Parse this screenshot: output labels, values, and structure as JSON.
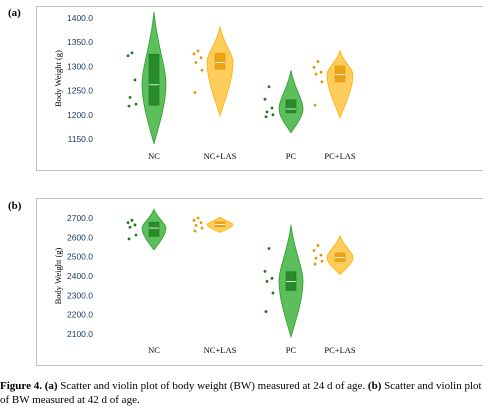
{
  "panels": [
    {
      "label": "(a)",
      "chart_data": {
        "type": "violin",
        "ylabel": "Body Weight (g)",
        "ylim": [
          1150,
          1400
        ],
        "yticks": [
          1150.0,
          1200.0,
          1250.0,
          1300.0,
          1350.0,
          1400.0
        ],
        "tick_labels": [
          "1150.0",
          "1200.0",
          "1250.0",
          "1300.0",
          "1350.0",
          "1400.0"
        ],
        "categories": [
          "NC",
          "NC+LAS",
          "PC",
          "PC+LAS"
        ],
        "colors": [
          "#2ca02c",
          "#ffb000",
          "#2ca02c",
          "#ffb000"
        ],
        "points": [
          [
            1328,
            1322,
            1272,
            1236,
            1222,
            1218
          ],
          [
            1332,
            1326,
            1318,
            1308,
            1292,
            1246
          ],
          [
            1258,
            1232,
            1214,
            1206,
            1200,
            1196
          ],
          [
            1310,
            1298,
            1288,
            1284,
            1268,
            1220
          ]
        ],
        "box": [
          {
            "q1": 1220,
            "median": 1262,
            "q3": 1325
          },
          {
            "q1": 1294,
            "median": 1308,
            "q3": 1327
          },
          {
            "q1": 1204,
            "median": 1212,
            "q3": 1231
          },
          {
            "q1": 1268,
            "median": 1283,
            "q3": 1301
          }
        ],
        "range": [
          [
            1140,
            1413
          ],
          [
            1198,
            1382
          ],
          [
            1163,
            1292
          ],
          [
            1194,
            1332
          ]
        ]
      }
    },
    {
      "label": "(b)",
      "chart_data": {
        "type": "violin",
        "ylabel": "Body Weight (g)",
        "ylim": [
          2100,
          2700
        ],
        "yticks": [
          2100.0,
          2200.0,
          2300.0,
          2400.0,
          2500.0,
          2600.0,
          2700.0
        ],
        "tick_labels": [
          "2100.0",
          "2200.0",
          "2300.0",
          "2400.0",
          "2500.0",
          "2600.0",
          "2700.0"
        ],
        "categories": [
          "NC",
          "NC+LAS",
          "PC",
          "PC+LAS"
        ],
        "colors": [
          "#2ca02c",
          "#ffb000",
          "#2ca02c",
          "#ffb000"
        ],
        "points": [
          [
            2688,
            2676,
            2664,
            2652,
            2612,
            2592
          ],
          [
            2700,
            2688,
            2676,
            2662,
            2648,
            2632
          ],
          [
            2542,
            2424,
            2388,
            2372,
            2312,
            2216
          ],
          [
            2558,
            2532,
            2508,
            2492,
            2476,
            2462
          ]
        ],
        "box": [
          {
            "q1": 2605,
            "median": 2648,
            "q3": 2678
          },
          {
            "q1": 2655,
            "median": 2667,
            "q3": 2680
          },
          {
            "q1": 2325,
            "median": 2372,
            "q3": 2422
          },
          {
            "q1": 2475,
            "median": 2495,
            "q3": 2520
          }
        ],
        "range": [
          [
            2535,
            2745
          ],
          [
            2625,
            2705
          ],
          [
            2085,
            2665
          ],
          [
            2408,
            2608
          ]
        ]
      }
    }
  ],
  "caption": {
    "fig": "Figure 4.",
    "a_tag": "(a)",
    "a_text": " Scatter and violin plot of body weight (BW) measured at 24 d of age. ",
    "b_tag": "(b)",
    "b_text": " Scatter and violin plot of BW measured at 42 d of age."
  }
}
